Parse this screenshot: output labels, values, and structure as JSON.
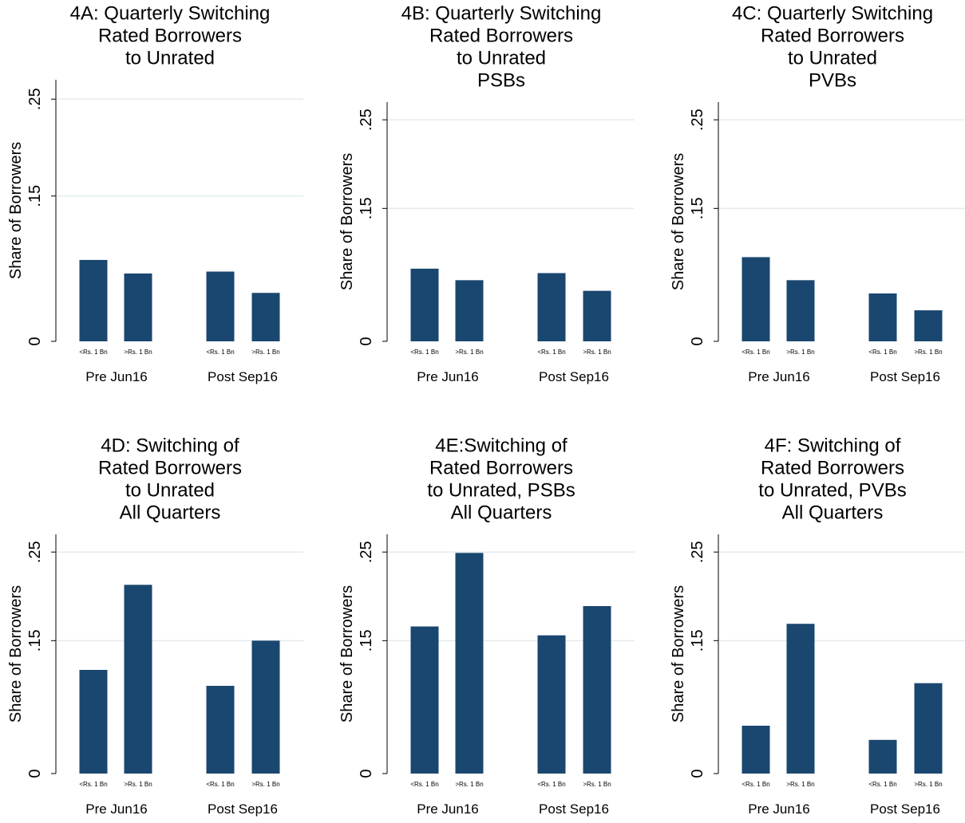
{
  "chart_data": [
    {
      "type": "bar",
      "title": [
        "4A: Quarterly Switching",
        "Rated Borrowers",
        "to Unrated"
      ],
      "ylabel": "Share of Borrowers",
      "categories": [
        "<Rs. 1 Bn",
        ">Rs. 1 Bn",
        "<Rs. 1 Bn",
        ">Rs. 1 Bn"
      ],
      "groups": [
        "Pre Jun16",
        "Post Sep16"
      ],
      "values": [
        0.084,
        0.07,
        0.072,
        0.05
      ],
      "color": "#1a476f",
      "ylim": [
        0,
        0.27
      ],
      "yticks": [
        0,
        {
          "value": 0.15,
          "label": ".15"
        },
        {
          "value": 0.25,
          "label": ".25"
        }
      ],
      "grid": true
    },
    {
      "type": "bar",
      "title": [
        "4B: Quarterly Switching",
        "Rated Borrowers",
        "to Unrated",
        "PSBs"
      ],
      "ylabel": "Share of Borrowers",
      "categories": [
        "<Rs. 1 Bn",
        ">Rs. 1 Bn",
        "<Rs. 1 Bn",
        ">Rs. 1 Bn"
      ],
      "groups": [
        "Pre Jun16",
        "Post Sep16"
      ],
      "values": [
        0.082,
        0.069,
        0.077,
        0.057
      ],
      "color": "#1a476f",
      "ylim": [
        0,
        0.27
      ],
      "yticks": [
        0,
        {
          "value": 0.15,
          "label": ".15"
        },
        {
          "value": 0.25,
          "label": ".25"
        }
      ],
      "grid": true
    },
    {
      "type": "bar",
      "title": [
        "4C: Quarterly Switching",
        "Rated Borrowers",
        "to Unrated",
        "PVBs"
      ],
      "ylabel": "Share of Borrowers",
      "categories": [
        "<Rs. 1 Bn",
        ">Rs. 1 Bn",
        "<Rs. 1 Bn",
        ">Rs. 1 Bn"
      ],
      "groups": [
        "Pre Jun16",
        "Post Sep16"
      ],
      "values": [
        0.095,
        0.069,
        0.054,
        0.035
      ],
      "color": "#1a476f",
      "ylim": [
        0,
        0.27
      ],
      "yticks": [
        0,
        {
          "value": 0.15,
          "label": ".15"
        },
        {
          "value": 0.25,
          "label": ".25"
        }
      ],
      "grid": true
    },
    {
      "type": "bar",
      "title": [
        "4D: Switching of",
        "Rated Borrowers",
        "to Unrated",
        "All Quarters"
      ],
      "ylabel": "Share of Borrowers",
      "categories": [
        "<Rs. 1 Bn",
        ">Rs. 1 Bn",
        "<Rs. 1 Bn",
        ">Rs. 1 Bn"
      ],
      "groups": [
        "Pre Jun16",
        "Post Sep16"
      ],
      "values": [
        0.117,
        0.213,
        0.099,
        0.15
      ],
      "color": "#1a476f",
      "ylim": [
        0,
        0.27
      ],
      "yticks": [
        0,
        {
          "value": 0.15,
          "label": ".15"
        },
        {
          "value": 0.25,
          "label": ".25"
        }
      ],
      "grid": true
    },
    {
      "type": "bar",
      "title": [
        "4E:Switching of",
        "Rated Borrowers",
        "to Unrated, PSBs",
        "All Quarters"
      ],
      "ylabel": "Share of Borrowers",
      "categories": [
        "<Rs. 1 Bn",
        ">Rs. 1 Bn",
        "<Rs. 1 Bn",
        ">Rs. 1 Bn"
      ],
      "groups": [
        "Pre Jun16",
        "Post Sep16"
      ],
      "values": [
        0.166,
        0.249,
        0.156,
        0.189
      ],
      "color": "#1a476f",
      "ylim": [
        0,
        0.27
      ],
      "yticks": [
        0,
        {
          "value": 0.15,
          "label": ".15"
        },
        {
          "value": 0.25,
          "label": ".25"
        }
      ],
      "grid": true
    },
    {
      "type": "bar",
      "title": [
        "4F: Switching of",
        "Rated Borrowers",
        "to Unrated, PVBs",
        "All Quarters"
      ],
      "ylabel": "Share of Borrowers",
      "categories": [
        "<Rs. 1 Bn",
        ">Rs. 1 Bn",
        "<Rs. 1 Bn",
        ">Rs. 1 Bn"
      ],
      "groups": [
        "Pre Jun16",
        "Post Sep16"
      ],
      "values": [
        0.054,
        0.169,
        0.038,
        0.102
      ],
      "color": "#1a476f",
      "ylim": [
        0,
        0.27
      ],
      "yticks": [
        0,
        {
          "value": 0.15,
          "label": ".15"
        },
        {
          "value": 0.25,
          "label": ".25"
        }
      ],
      "grid": true
    }
  ]
}
